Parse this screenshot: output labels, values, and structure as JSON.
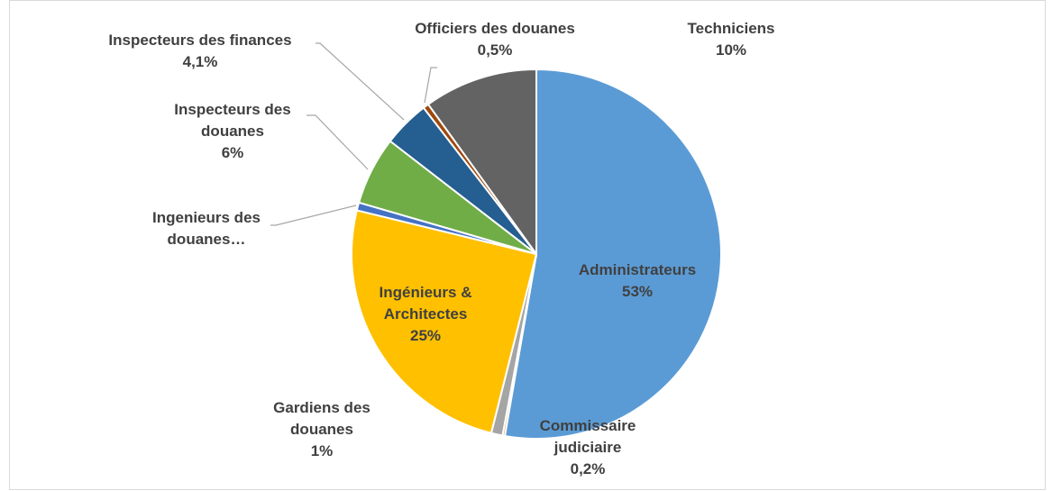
{
  "chart_data": {
    "type": "pie",
    "categories": [
      "Administrateurs",
      "Commissaire judiciaire",
      "Gardiens des douanes",
      "Ingénieurs & Architectes",
      "Ingenieurs des douanes…",
      "Inspecteurs des douanes",
      "Inspecteurs des finances",
      "Officiers des douanes",
      "Techniciens"
    ],
    "values": [
      53,
      0.2,
      1,
      25,
      0.7,
      6,
      4.1,
      0.5,
      10
    ],
    "value_labels": [
      "53%",
      "0,2%",
      "1%",
      "25%",
      null,
      "6%",
      "4,1%",
      "0,5%",
      "10%"
    ],
    "colors": [
      "#5b9bd5",
      "#ed7d31",
      "#a5a5a5",
      "#ffc000",
      "#4472c4",
      "#70ad47",
      "#255e91",
      "#9e480e",
      "#636363"
    ]
  }
}
